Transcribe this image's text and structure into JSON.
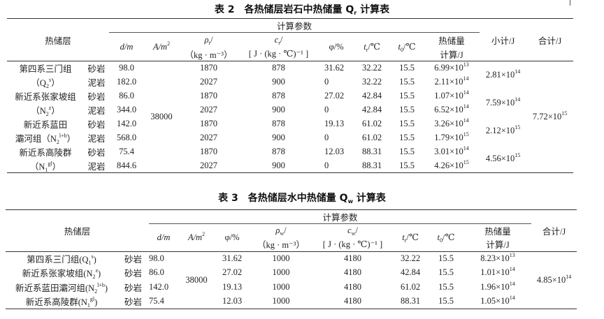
{
  "table2": {
    "title": "表 2　各热储层岩石中热储量 Q",
    "title_sub": "r",
    "title_tail": " 计算表",
    "headers": {
      "layer": "热储层",
      "group": "计算参数",
      "d": "d/m",
      "A": "A/m",
      "A_sup": "2",
      "rho_sym": "ρ",
      "rho_sub": "r",
      "rho_unit": "（kg · m⁻³）",
      "c_sym": "c",
      "c_sub": "r",
      "c_unit": "[ J · (kg · ℃)⁻¹ ]",
      "phi": "φ/%",
      "tr": "t",
      "tr_sub": "r",
      "tr_unit": "/℃",
      "t0": "t",
      "t0_sub": "0",
      "t0_unit": "/℃",
      "heat1": "热储量",
      "heat2": "计算/J",
      "subtotal": "小计/J",
      "total": "合计/J"
    },
    "area": "38000",
    "total": {
      "base": "7.72×10",
      "exp": "15"
    },
    "groups": [
      {
        "name1": "第四系三门组",
        "name2": {
          "pre": "（Q",
          "sub": "2",
          "sup": "s",
          "post": "）"
        },
        "subtotal": {
          "base": "2.81×10",
          "exp": "14"
        },
        "rows": [
          {
            "rock": "砂岩",
            "d": "98.0",
            "rho": "1870",
            "c": "878",
            "phi": "31.62",
            "tr": "32.22",
            "t0": "15.5",
            "heat": {
              "base": "6.99×10",
              "exp": "13"
            }
          },
          {
            "rock": "泥岩",
            "d": "182.0",
            "rho": "2027",
            "c": "900",
            "phi": "0",
            "tr": "32.22",
            "t0": "15.5",
            "heat": {
              "base": "2.11×10",
              "exp": "14"
            }
          }
        ]
      },
      {
        "name1": "新近系张家坡组",
        "name2": {
          "pre": "（N",
          "sub": "2",
          "sup": "z",
          "post": "）"
        },
        "subtotal": {
          "base": "7.59×10",
          "exp": "14"
        },
        "rows": [
          {
            "rock": "砂岩",
            "d": "86.0",
            "rho": "1870",
            "c": "878",
            "phi": "27.02",
            "tr": "42.84",
            "t0": "15.5",
            "heat": {
              "base": "1.07×10",
              "exp": "14"
            }
          },
          {
            "rock": "泥岩",
            "d": "344.0",
            "rho": "2027",
            "c": "900",
            "phi": "0",
            "tr": "42.84",
            "t0": "15.5",
            "heat": {
              "base": "6.52×10",
              "exp": "14"
            }
          }
        ]
      },
      {
        "name1": "新近系蓝田",
        "name2": {
          "pre": "灞河组（N",
          "sub": "2",
          "sup": "l+b",
          "post": "）"
        },
        "subtotal": {
          "base": "2.12×10",
          "exp": "15"
        },
        "rows": [
          {
            "rock": "砂岩",
            "d": "142.0",
            "rho": "1870",
            "c": "878",
            "phi": "19.13",
            "tr": "61.02",
            "t0": "15.5",
            "heat": {
              "base": "3.26×10",
              "exp": "14"
            }
          },
          {
            "rock": "泥岩",
            "d": "568.0",
            "rho": "2027",
            "c": "900",
            "phi": "0",
            "tr": "61.02",
            "t0": "15.5",
            "heat": {
              "base": "1.79×10",
              "exp": "15"
            }
          }
        ]
      },
      {
        "name1": "新近系高陵群",
        "name2": {
          "pre": "（N",
          "sub": "1",
          "sup": "gl",
          "post": "）"
        },
        "subtotal": {
          "base": "4.56×10",
          "exp": "15"
        },
        "rows": [
          {
            "rock": "砂岩",
            "d": "75.4",
            "rho": "1870",
            "c": "878",
            "phi": "12.03",
            "tr": "88.31",
            "t0": "15.5",
            "heat": {
              "base": "3.01×10",
              "exp": "14"
            }
          },
          {
            "rock": "泥岩",
            "d": "844.6",
            "rho": "2027",
            "c": "900",
            "phi": "0",
            "tr": "88.31",
            "t0": "15.5",
            "heat": {
              "base": "4.26×10",
              "exp": "15"
            }
          }
        ]
      }
    ]
  },
  "table3": {
    "title": "表 3　各热储层水中热储量 Q",
    "title_sub": "w",
    "title_tail": " 计算表",
    "headers": {
      "layer": "热储层",
      "group": "计算参数",
      "d": "d/m",
      "A": "A/m",
      "A_sup": "2",
      "phi": "φ/%",
      "rho_sym": "ρ",
      "rho_sub": "w",
      "rho_unit": "（kg · m⁻³）",
      "c_sym": "c",
      "c_sub": "w",
      "c_unit": "[ J · (kg · ℃)⁻¹ ]",
      "tr": "t",
      "tr_sub": "r",
      "tr_unit": "/℃",
      "t0": "t",
      "t0_sub": "0",
      "t0_unit": "/℃",
      "heat1": "热储量",
      "heat2": "计算/J",
      "total": "合计/J"
    },
    "area": "38000",
    "total": {
      "base": "4.85×10",
      "exp": "14"
    },
    "rows": [
      {
        "name": {
          "pre": "第四系三门组(Q",
          "sub": "1",
          "sup": "s",
          "post": ")"
        },
        "rock": "砂岩",
        "d": "98.0",
        "phi": "31.62",
        "rho": "1000",
        "c": "4180",
        "tr": "32.22",
        "t0": "15.5",
        "heat": {
          "base": "8.23×10",
          "exp": "13"
        }
      },
      {
        "name": {
          "pre": "新近系张家坡组(N",
          "sub": "2",
          "sup": "z",
          "post": ")"
        },
        "rock": "砂岩",
        "d": "86.0",
        "phi": "27.02",
        "rho": "1000",
        "c": "4180",
        "tr": "42.84",
        "t0": "15.5",
        "heat": {
          "base": "1.01×10",
          "exp": "14"
        }
      },
      {
        "name": {
          "pre": "新近系蓝田灞河组(N",
          "sub": "2",
          "sup": "l+b",
          "post": ")"
        },
        "rock": "砂岩",
        "d": "142.0",
        "phi": "19.13",
        "rho": "1000",
        "c": "4180",
        "tr": "61.02",
        "t0": "15.5",
        "heat": {
          "base": "1.96×10",
          "exp": "14"
        }
      },
      {
        "name": {
          "pre": "新近系高陵群(N",
          "sub": "1",
          "sup": "gl",
          "post": ")"
        },
        "rock": "砂岩",
        "d": "75.4",
        "phi": "12.03",
        "rho": "1000",
        "c": "4180",
        "tr": "88.31",
        "t0": "15.5",
        "heat": {
          "base": "1.05×10",
          "exp": "14"
        }
      }
    ]
  }
}
